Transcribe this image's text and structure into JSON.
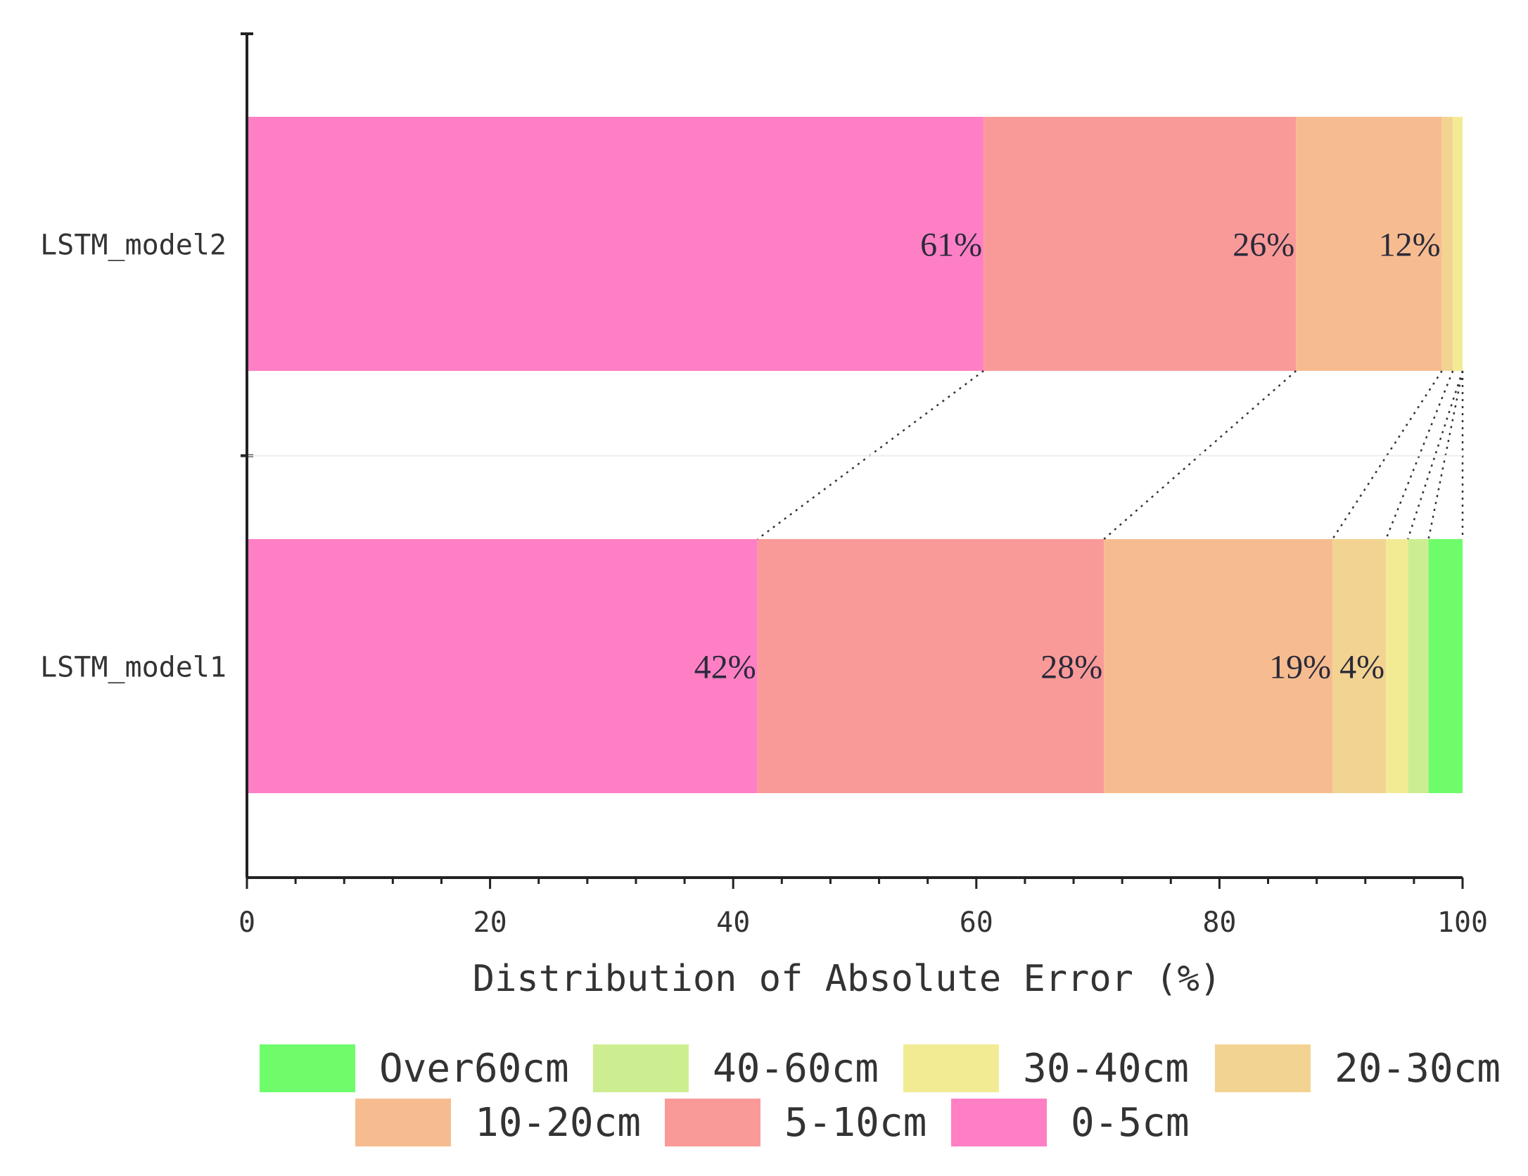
{
  "chart_data": {
    "type": "bar",
    "orientation": "horizontal",
    "stacked": true,
    "categories": [
      "LSTM_model2",
      "LSTM_model1"
    ],
    "xlabel": "Distribution of Absolute Error (%)",
    "ylabel": "",
    "xlim": [
      0,
      100
    ],
    "x_ticks": [
      0,
      20,
      40,
      60,
      80,
      100
    ],
    "grid": false,
    "legend_position": "bottom",
    "connector_lines": "dotted",
    "series": [
      {
        "name": "0-5cm",
        "color": "#ff7fc5",
        "values": [
          60.6,
          42.0
        ],
        "labels": [
          "61%",
          "42%"
        ]
      },
      {
        "name": "5-10cm",
        "color": "#f99a98",
        "values": [
          25.7,
          28.5
        ],
        "labels": [
          "26%",
          "28%"
        ]
      },
      {
        "name": "10-20cm",
        "color": "#f6bc90",
        "values": [
          12.0,
          18.8
        ],
        "labels": [
          "12%",
          "19%"
        ]
      },
      {
        "name": "20-30cm",
        "color": "#f3d392",
        "values": [
          0.9,
          4.4
        ],
        "labels": [
          "",
          "4%"
        ]
      },
      {
        "name": "30-40cm",
        "color": "#f3eb94",
        "values": [
          0.8,
          1.8
        ],
        "labels": [
          "",
          ""
        ]
      },
      {
        "name": "40-60cm",
        "color": "#cdee90",
        "values": [
          0.0,
          1.7
        ],
        "labels": [
          "",
          ""
        ]
      },
      {
        "name": "Over60cm",
        "color": "#6efc6b",
        "values": [
          0.0,
          2.8
        ],
        "labels": [
          "",
          ""
        ]
      }
    ],
    "legend_order": [
      "Over60cm",
      "40-60cm",
      "30-40cm",
      "20-30cm",
      "10-20cm",
      "5-10cm",
      "0-5cm"
    ]
  }
}
